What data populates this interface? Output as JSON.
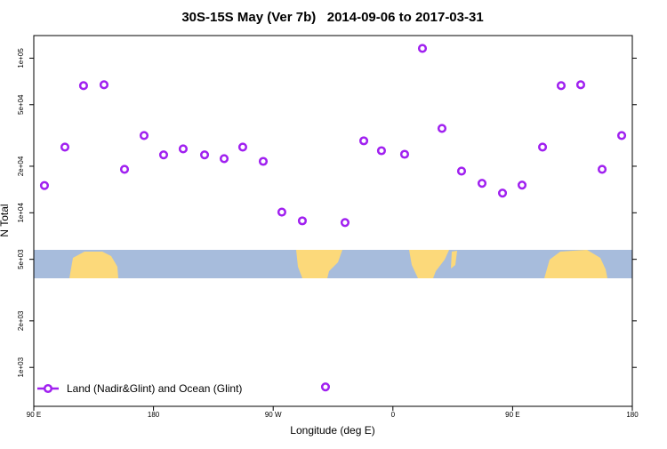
{
  "chart_data": {
    "type": "scatter",
    "title": "30S-15S May (Ver 7b)   2014-09-06 to 2017-03-31",
    "x_label": "Longitude (deg E)",
    "y_label": "N Total",
    "log_y": true,
    "legend": "bottom-left",
    "xlim": [
      90,
      540
    ],
    "ylim": [
      560,
      140000
    ],
    "xticks": [
      {
        "value": 90,
        "label": "90 E"
      },
      180,
      {
        "value": 270,
        "label": "90 W"
      },
      {
        "value": 360,
        "label": "0"
      },
      {
        "value": 450,
        "label": "90 E"
      },
      {
        "value": 540,
        "label": "180"
      }
    ],
    "yticks": [
      {
        "value": 1000,
        "label": "1e+03"
      },
      {
        "value": 2000,
        "label": "2e+03"
      },
      {
        "value": 5000,
        "label": "5e+03"
      },
      {
        "value": 10000,
        "label": "1e+04"
      },
      {
        "value": 20000,
        "label": "2e+04"
      },
      {
        "value": 50000,
        "label": "5e+04"
      },
      {
        "value": 100000,
        "label": "1e+05"
      }
    ],
    "series": [
      {
        "name": "Land (Nadir&Glint) and Ocean (Glint)",
        "color": "#a020f0",
        "x": [
          98,
          113.4,
          127.4,
          142.8,
          158.2,
          172.9,
          187.6,
          202.3,
          218.4,
          233.1,
          247.1,
          262.5,
          276.5,
          291.9,
          309.3,
          324,
          338.1,
          351.4,
          368.8,
          382.2,
          396.9,
          411.6,
          427,
          442.4,
          457.1,
          472.5,
          486.5,
          501.2,
          517.3,
          532
        ],
        "values": [
          15000,
          26600,
          66400,
          67300,
          19100,
          31600,
          23700,
          25900,
          23700,
          22400,
          26600,
          21500,
          10100,
          8870,
          748,
          8650,
          29200,
          25200,
          23900,
          115600,
          35100,
          18600,
          15500,
          13400,
          15100,
          26600,
          66400,
          67300,
          19100,
          31600
        ]
      }
    ]
  }
}
